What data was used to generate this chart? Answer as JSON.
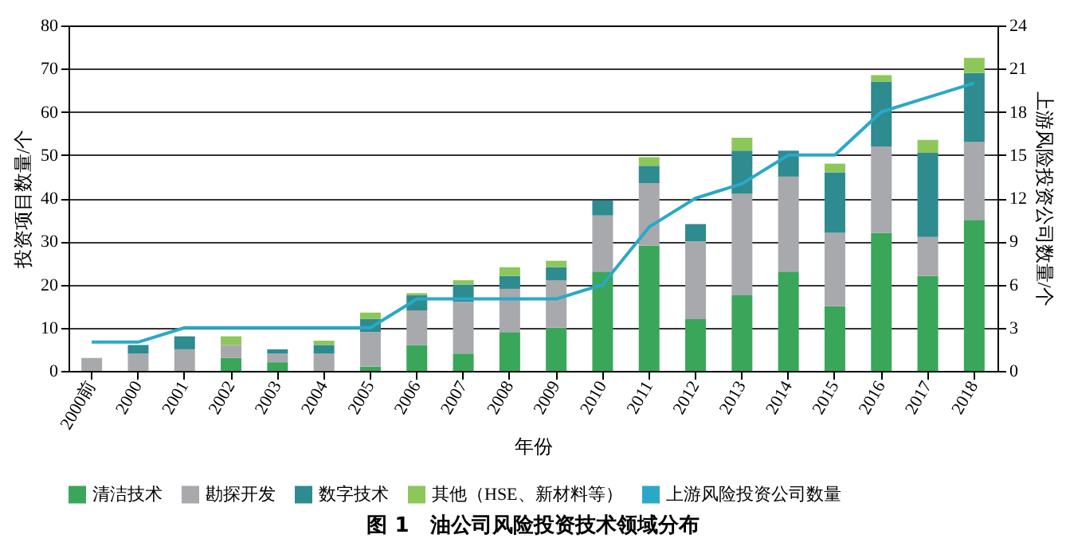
{
  "chart_data": {
    "type": "bar",
    "stacked": true,
    "title": "图 1　油公司风险投资技术领域分布",
    "xlabel": "年份",
    "ylabel": "投资项目数量/个",
    "y2label": "上游风险投资公司数量/个",
    "categories": [
      "2000前",
      "2000",
      "2001",
      "2002",
      "2003",
      "2004",
      "2005",
      "2006",
      "2007",
      "2008",
      "2009",
      "2010",
      "2011",
      "2012",
      "2013",
      "2014",
      "2015",
      "2016",
      "2017",
      "2018"
    ],
    "series": [
      {
        "name": "清洁技术",
        "color": "#3aa65a",
        "values": [
          0,
          0,
          0,
          3,
          2,
          0,
          1,
          6,
          4,
          9,
          10,
          23,
          29,
          12,
          17.5,
          23,
          15,
          32,
          22,
          35
        ]
      },
      {
        "name": "勘探开发",
        "color": "#a8a9ad",
        "values": [
          3,
          4,
          5,
          3,
          2,
          4,
          8,
          8,
          12,
          10,
          11,
          13,
          14.5,
          18,
          23.5,
          22,
          17,
          20,
          9,
          18
        ]
      },
      {
        "name": "数字技术",
        "color": "#2e8b8f",
        "values": [
          0,
          2,
          3,
          0,
          1,
          2,
          3,
          3.5,
          4,
          3,
          3,
          3.5,
          4,
          4,
          10,
          6,
          14,
          15,
          19.5,
          16
        ]
      },
      {
        "name": "其他（HSE、新材料等）",
        "color": "#8dc75a",
        "values": [
          0,
          0,
          0,
          2,
          0,
          1,
          1.5,
          0.5,
          1,
          2,
          1.5,
          0,
          2,
          0,
          3,
          0,
          2,
          1.5,
          3,
          3.5
        ]
      },
      {
        "name": "上游风险投资公司数量",
        "color": "#29a9c7",
        "type": "line",
        "axis": "y2",
        "values": [
          2,
          2,
          3,
          3,
          3,
          3,
          3,
          5,
          5,
          5,
          5,
          6,
          10,
          12,
          13,
          15,
          15,
          18,
          19,
          20
        ]
      }
    ],
    "ylim": [
      0,
      80
    ],
    "yticks": [
      0,
      10,
      20,
      30,
      40,
      50,
      60,
      70,
      80
    ],
    "y2lim": [
      0,
      24
    ],
    "y2ticks": [
      0,
      3,
      6,
      9,
      12,
      15,
      18,
      21,
      24
    ],
    "grid": "y",
    "legend": "bottom"
  }
}
